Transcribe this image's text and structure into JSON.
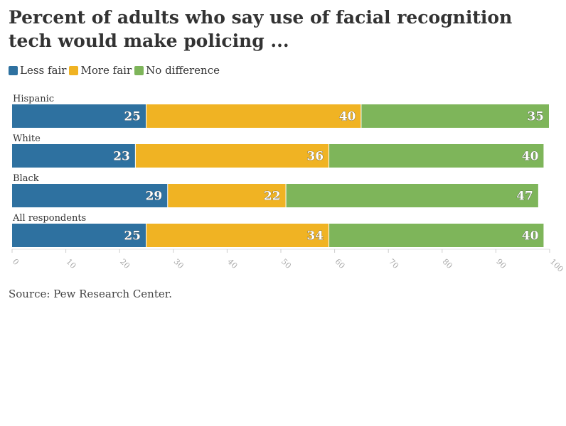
{
  "title": "Percent of adults who say use of facial recognition tech would make policing ...",
  "source": "Source: Pew Research Center.",
  "chart_data": {
    "type": "bar",
    "orientation": "horizontal",
    "stacked": true,
    "categories": [
      "Hispanic",
      "White",
      "Black",
      "All respondents"
    ],
    "series": [
      {
        "name": "Less fair",
        "color": "#2e71a0",
        "values": [
          25,
          23,
          29,
          25
        ]
      },
      {
        "name": "More fair",
        "color": "#f0b323",
        "values": [
          40,
          36,
          22,
          34
        ]
      },
      {
        "name": "No difference",
        "color": "#7eb55a",
        "values": [
          35,
          40,
          47,
          40
        ]
      }
    ],
    "xlim": [
      0,
      100
    ],
    "xticks": [
      0,
      10,
      20,
      30,
      40,
      50,
      60,
      70,
      80,
      90,
      100
    ],
    "legend_position": "top-left",
    "grid": false
  }
}
